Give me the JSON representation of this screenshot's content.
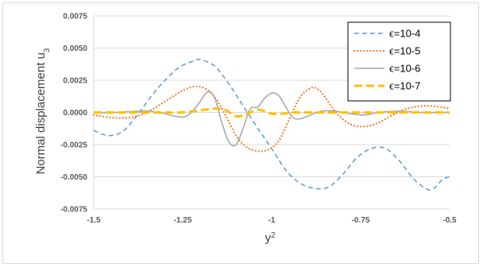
{
  "chart_data": {
    "type": "line",
    "xlabel": "y",
    "xlabel_sup": "2",
    "ylabel": "Normal displacement u",
    "ylabel_sub": "3",
    "xlim": [
      -1.5,
      -0.5
    ],
    "ylim": [
      -0.0075,
      0.0075
    ],
    "x_ticks": [
      -1.5,
      -1.25,
      -1.0,
      -0.75,
      -0.5
    ],
    "x_tick_labels": [
      "-1.5",
      "-1.25",
      "-1",
      "-0.75",
      "-0.5"
    ],
    "y_ticks": [
      0.0075,
      0.005,
      0.0025,
      0.0,
      -0.0025,
      -0.005,
      -0.0075
    ],
    "y_tick_labels": [
      "0.0075",
      "0.0050",
      "0.0025",
      "0.0000",
      "-0.0025",
      "-0.0050",
      "-0.0075"
    ],
    "grid": "horizontal",
    "legend_position": "top-right",
    "series": [
      {
        "name": "ϵ=10-4",
        "color": "#5b9bd5",
        "dash": "dashed",
        "x": [
          -1.5,
          -1.46,
          -1.42,
          -1.38,
          -1.34,
          -1.3,
          -1.26,
          -1.22,
          -1.2,
          -1.16,
          -1.12,
          -1.08,
          -1.04,
          -1.0,
          -0.96,
          -0.92,
          -0.88,
          -0.84,
          -0.8,
          -0.76,
          -0.72,
          -0.68,
          -0.64,
          -0.6,
          -0.56,
          -0.54,
          -0.52,
          -0.5
        ],
        "y": [
          -0.0014,
          -0.0018,
          -0.0015,
          -0.0003,
          0.0012,
          0.0025,
          0.0035,
          0.004,
          0.0041,
          0.0036,
          0.0022,
          0.0005,
          -0.0012,
          -0.0028,
          -0.0045,
          -0.0055,
          -0.0059,
          -0.0058,
          -0.0048,
          -0.0035,
          -0.0028,
          -0.0028,
          -0.0038,
          -0.0052,
          -0.006,
          -0.0058,
          -0.0052,
          -0.005
        ]
      },
      {
        "name": "ϵ=10-5",
        "color": "#ed7d31",
        "dash": "dotted",
        "x": [
          -1.5,
          -1.45,
          -1.4,
          -1.36,
          -1.32,
          -1.28,
          -1.25,
          -1.22,
          -1.19,
          -1.16,
          -1.13,
          -1.1,
          -1.07,
          -1.04,
          -1.01,
          -0.98,
          -0.95,
          -0.92,
          -0.89,
          -0.87,
          -0.85,
          -0.82,
          -0.78,
          -0.74,
          -0.7,
          -0.66,
          -0.62,
          -0.58,
          -0.55,
          -0.52,
          -0.5
        ],
        "y": [
          -0.0002,
          -0.0004,
          -0.0004,
          -0.0001,
          0.0005,
          0.0012,
          0.0017,
          0.002,
          0.0019,
          0.0012,
          -0.0002,
          -0.0018,
          -0.0027,
          -0.003,
          -0.0029,
          -0.0022,
          -0.0005,
          0.0012,
          0.0019,
          0.0018,
          0.0012,
          0.0,
          -0.0009,
          -0.0011,
          -0.0008,
          -0.0002,
          0.0003,
          0.0005,
          0.0005,
          0.0004,
          0.0003
        ]
      },
      {
        "name": "ϵ=10-6",
        "color": "#a5a5a5",
        "dash": "solid",
        "x": [
          -1.5,
          -1.44,
          -1.38,
          -1.34,
          -1.3,
          -1.27,
          -1.24,
          -1.21,
          -1.18,
          -1.16,
          -1.14,
          -1.12,
          -1.1,
          -1.08,
          -1.06,
          -1.04,
          -1.02,
          -1.0,
          -0.98,
          -0.96,
          -0.94,
          -0.92,
          -0.9,
          -0.86,
          -0.82,
          -0.78,
          -0.74,
          -0.7,
          -0.64,
          -0.58,
          -0.5
        ],
        "y": [
          0.0,
          0.0,
          0.0001,
          0.0001,
          -0.0001,
          -0.0003,
          -0.0003,
          0.0005,
          0.0016,
          0.0011,
          -0.0008,
          -0.0023,
          -0.0025,
          -0.0012,
          0.0003,
          0.0004,
          0.0011,
          0.0015,
          0.0013,
          0.0004,
          -0.0004,
          -0.0005,
          -0.0003,
          0.0001,
          0.0001,
          -0.0001,
          -0.0002,
          0.0,
          0.0001,
          0.0,
          0.0
        ]
      },
      {
        "name": "ϵ=10-7",
        "color": "#ffc000",
        "dash": "longdash",
        "x": [
          -1.5,
          -1.42,
          -1.36,
          -1.3,
          -1.26,
          -1.22,
          -1.19,
          -1.16,
          -1.13,
          -1.1,
          -1.07,
          -1.04,
          -1.02,
          -1.0,
          -0.97,
          -0.94,
          -0.9,
          -0.85,
          -0.8,
          -0.75,
          -0.7,
          -0.6,
          -0.5
        ],
        "y": [
          0.0,
          0.0,
          0.0,
          0.0,
          0.0,
          0.0001,
          0.0002,
          0.0003,
          0.0002,
          -0.0003,
          -0.0001,
          0.0002,
          0.0001,
          -0.0001,
          -0.0001,
          0.0,
          0.0,
          0.0,
          0.0,
          0.0,
          0.0,
          0.0,
          0.0
        ]
      }
    ]
  }
}
